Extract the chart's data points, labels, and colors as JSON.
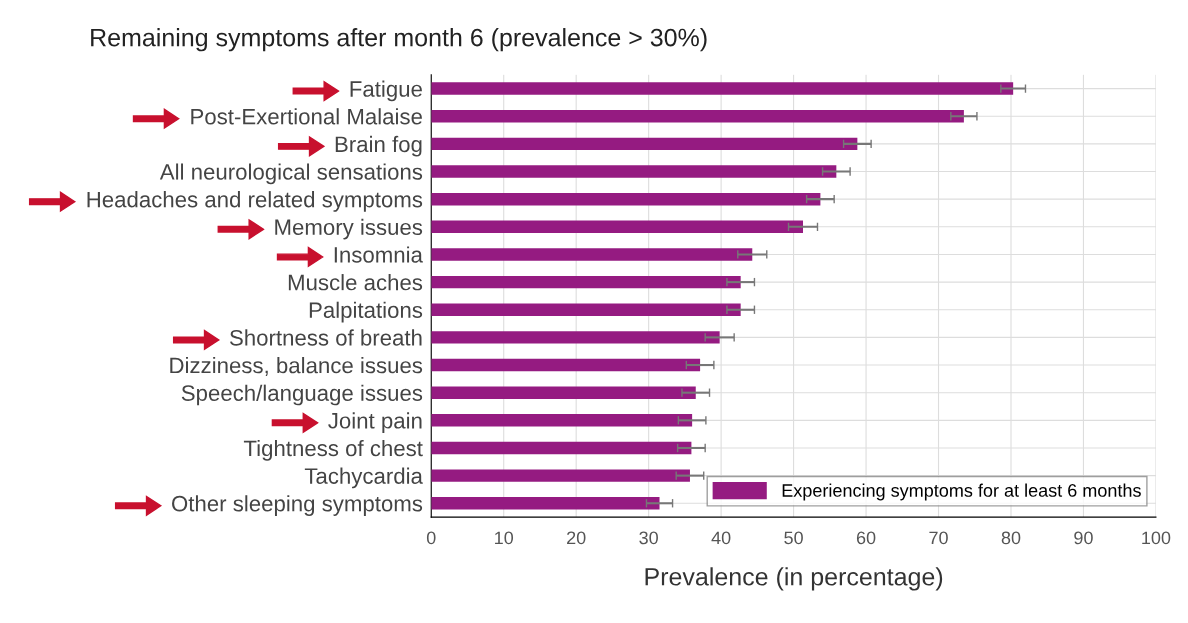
{
  "chart_data": {
    "type": "bar",
    "orientation": "horizontal",
    "title": "Remaining symptoms after month 6 (prevalence > 30%)",
    "xlabel": "Prevalence (in percentage)",
    "categories": [
      "Fatigue",
      "Post-Exertional Malaise",
      "Brain fog",
      "All neurological sensations",
      "Headaches and related symptoms",
      "Memory issues",
      "Insomnia",
      "Muscle aches",
      "Palpitations",
      "Shortness of breath",
      "Dizziness, balance issues",
      "Speech/language issues",
      "Joint pain",
      "Tightness of chest",
      "Tachycardia",
      "Other sleeping symptoms"
    ],
    "series": [
      {
        "name": "Experiencing symptoms for at least 6 months",
        "color": "#951b81",
        "values": [
          80.3,
          73.5,
          58.8,
          55.9,
          53.7,
          51.3,
          44.3,
          42.7,
          42.7,
          39.8,
          37.1,
          36.5,
          36.0,
          35.9,
          35.7,
          31.5
        ],
        "errors": [
          1.7,
          1.8,
          1.9,
          1.9,
          1.9,
          2.0,
          2.0,
          1.9,
          1.9,
          2.0,
          1.9,
          1.9,
          1.9,
          1.9,
          1.9,
          1.8
        ]
      }
    ],
    "xlim": [
      0,
      100
    ],
    "xticks": [
      0,
      10,
      20,
      30,
      40,
      50,
      60,
      70,
      80,
      90,
      100
    ],
    "grid": true,
    "legend": "bottom right"
  }
}
